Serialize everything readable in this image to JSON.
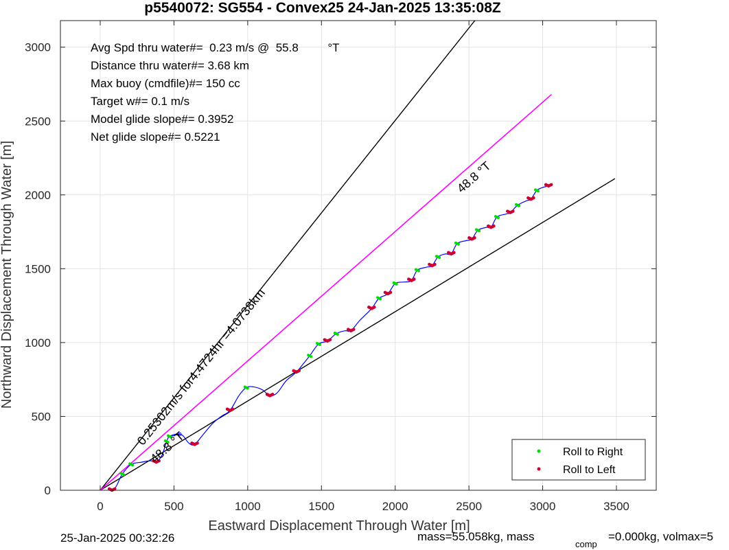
{
  "chart_data": {
    "type": "line",
    "title": "p5540072: SG554 - Convex25 24-Jan-2025 13:35:08Z",
    "xlabel": "Eastward Displacement Through Water [m]",
    "ylabel": "Northward Displacement Through Water [m]",
    "xlim": [
      -270,
      3770
    ],
    "ylim": [
      0,
      3180
    ],
    "xticks": [
      0,
      500,
      1000,
      1500,
      2000,
      2500,
      3000,
      3500
    ],
    "yticks": [
      0,
      500,
      1000,
      1500,
      2000,
      2500,
      3000
    ],
    "grid": true,
    "legend_position": "bottom-right",
    "legend": [
      {
        "label": "Roll to Right",
        "color": "#00dd00"
      },
      {
        "label": "Roll to Left",
        "color": "#cc0033"
      }
    ],
    "stats": [
      "Avg Spd thru water#=  0.23 m/s @  55.8         °T",
      "Distance thru water#=  3.68 km",
      "Max buoy (cmdfile)#= 150 cc",
      "Target w#= 0.1 m/s",
      "Model glide slope#= 0.3952",
      "Net glide slope#= 0.5221"
    ],
    "reference_lines": [
      {
        "name": "upper-bound",
        "color": "#000000",
        "points": [
          [
            0,
            0
          ],
          [
            2540,
            3180
          ]
        ]
      },
      {
        "name": "lower-bound",
        "color": "#000000",
        "points": [
          [
            0,
            0
          ],
          [
            3490,
            2110
          ]
        ]
      },
      {
        "name": "heading-line",
        "color": "#ff00ff",
        "points": [
          [
            0,
            0
          ],
          [
            3060,
            2680
          ]
        ]
      }
    ],
    "annotations": [
      {
        "text": "0.25302m/s for4.4724hr =4.0738km",
        "x": 290,
        "y": 300,
        "angle_deg": 51.3
      },
      {
        "text": "48.8 °T",
        "x": 370,
        "y": 180,
        "angle_deg": 41.2
      },
      {
        "text": "48.8 °T",
        "x": 2450,
        "y": 2010,
        "angle_deg": 41.2
      }
    ],
    "track": [
      [
        0,
        0
      ],
      [
        80,
        0
      ],
      [
        110,
        30
      ],
      [
        150,
        110
      ],
      [
        210,
        175
      ],
      [
        280,
        190
      ],
      [
        340,
        200
      ],
      [
        380,
        190
      ],
      [
        420,
        240
      ],
      [
        450,
        330
      ],
      [
        470,
        365
      ],
      [
        520,
        380
      ],
      [
        560,
        370
      ],
      [
        600,
        320
      ],
      [
        640,
        310
      ],
      [
        700,
        380
      ],
      [
        760,
        450
      ],
      [
        820,
        500
      ],
      [
        880,
        540
      ],
      [
        940,
        640
      ],
      [
        990,
        695
      ],
      [
        1040,
        700
      ],
      [
        1100,
        680
      ],
      [
        1150,
        640
      ],
      [
        1200,
        660
      ],
      [
        1260,
        740
      ],
      [
        1330,
        800
      ],
      [
        1380,
        860
      ],
      [
        1420,
        910
      ],
      [
        1480,
        990
      ],
      [
        1540,
        1010
      ],
      [
        1600,
        1060
      ],
      [
        1660,
        1080
      ],
      [
        1700,
        1080
      ],
      [
        1760,
        1150
      ],
      [
        1840,
        1230
      ],
      [
        1890,
        1300
      ],
      [
        1950,
        1330
      ],
      [
        2000,
        1400
      ],
      [
        2060,
        1410
      ],
      [
        2110,
        1420
      ],
      [
        2150,
        1490
      ],
      [
        2210,
        1510
      ],
      [
        2250,
        1520
      ],
      [
        2290,
        1580
      ],
      [
        2340,
        1600
      ],
      [
        2380,
        1600
      ],
      [
        2420,
        1670
      ],
      [
        2480,
        1690
      ],
      [
        2520,
        1700
      ],
      [
        2560,
        1760
      ],
      [
        2620,
        1780
      ],
      [
        2650,
        1780
      ],
      [
        2690,
        1850
      ],
      [
        2750,
        1870
      ],
      [
        2780,
        1880
      ],
      [
        2830,
        1930
      ],
      [
        2890,
        1960
      ],
      [
        2920,
        1970
      ],
      [
        2960,
        2030
      ],
      [
        3000,
        2050
      ],
      [
        3040,
        2060
      ]
    ],
    "current_arrow": {
      "color": "#0000ff",
      "from": [
        460,
        360
      ],
      "to": [
        540,
        380
      ]
    },
    "roll_right": [
      [
        150,
        110
      ],
      [
        210,
        175
      ],
      [
        450,
        330
      ],
      [
        470,
        365
      ],
      [
        990,
        695
      ],
      [
        1420,
        910
      ],
      [
        1480,
        990
      ],
      [
        1600,
        1060
      ],
      [
        1890,
        1300
      ],
      [
        2000,
        1400
      ],
      [
        2150,
        1490
      ],
      [
        2290,
        1580
      ],
      [
        2420,
        1670
      ],
      [
        2560,
        1760
      ],
      [
        2690,
        1850
      ],
      [
        2830,
        1930
      ],
      [
        2960,
        2030
      ]
    ],
    "roll_left": [
      [
        80,
        0
      ],
      [
        380,
        190
      ],
      [
        640,
        310
      ],
      [
        1150,
        640
      ],
      [
        1540,
        1010
      ],
      [
        1700,
        1080
      ],
      [
        1840,
        1230
      ],
      [
        2110,
        1420
      ],
      [
        2250,
        1520
      ],
      [
        2380,
        1600
      ],
      [
        2520,
        1700
      ],
      [
        2650,
        1780
      ],
      [
        2780,
        1880
      ],
      [
        2920,
        1970
      ],
      [
        3040,
        2060
      ],
      [
        880,
        540
      ],
      [
        1330,
        800
      ],
      [
        1950,
        1330
      ]
    ]
  },
  "footer": {
    "timestamp": "25-Jan-2025 00:32:26",
    "mass_text": "mass=55.058kg, mass",
    "mass_sub": "comp",
    "mass_tail": "=0.000kg, volmax=5"
  }
}
